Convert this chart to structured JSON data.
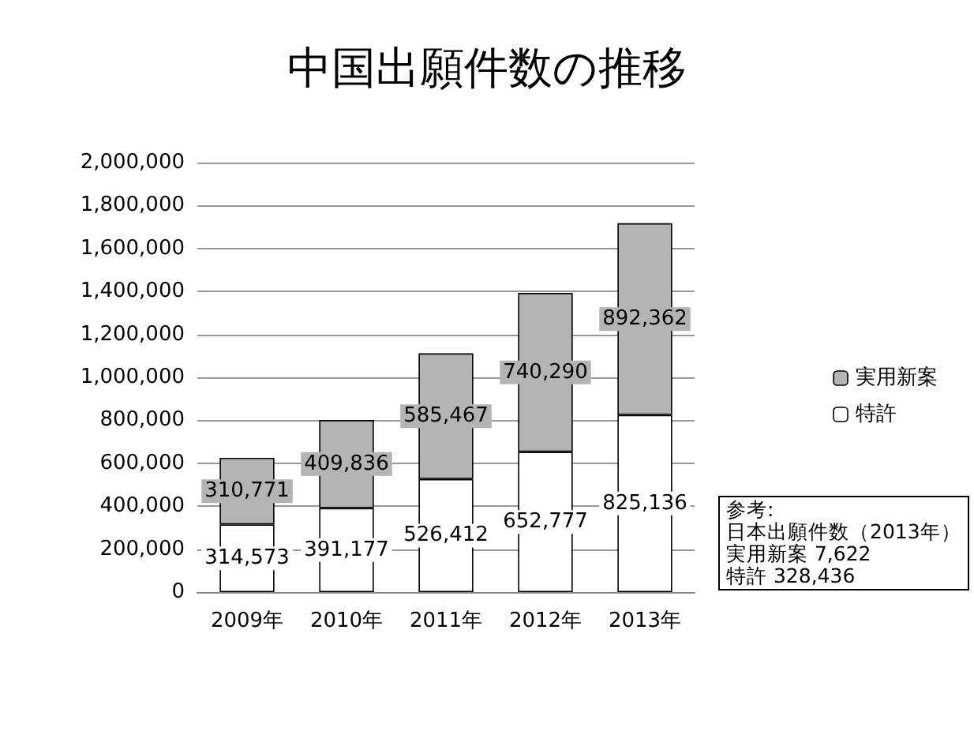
{
  "chart_data": {
    "type": "bar",
    "title": "中国出願件数の推移",
    "categories": [
      "2009年",
      "2010年",
      "2011年",
      "2012年",
      "2013年"
    ],
    "stacked": true,
    "series": [
      {
        "name": "特許",
        "color": "#ffffff",
        "values": [
          314573,
          391177,
          526412,
          652777,
          825136
        ],
        "value_labels": [
          "314,573",
          "391,177",
          "526,412",
          "652,777",
          "825,136"
        ]
      },
      {
        "name": "実用新案",
        "color": "#b4b4b4",
        "values": [
          310771,
          409836,
          585467,
          740290,
          892362
        ],
        "value_labels": [
          "310,771",
          "409,836",
          "585,467",
          "740,290",
          "892,362"
        ]
      }
    ],
    "ylim": [
      0,
      2000000
    ],
    "yticks": [
      0,
      {
        "value": 200000,
        "label": "200,000"
      },
      {
        "value": 400000,
        "label": "400,000"
      },
      {
        "value": 600000,
        "label": "600,000"
      },
      {
        "value": 800000,
        "label": "800,000"
      },
      {
        "value": 1000000,
        "label": "1,000,000"
      },
      {
        "value": 1200000,
        "label": "1,200,000"
      },
      {
        "value": 1400000,
        "label": "1,400,000"
      },
      {
        "value": 1600000,
        "label": "1,600,000"
      },
      {
        "value": 1800000,
        "label": "1,800,000"
      },
      {
        "value": 2000000,
        "label": "2,000,000"
      }
    ],
    "grid": "y",
    "legend": "right",
    "annotations": [
      "参考:",
      "日本出願件数（2013年）",
      "実用新案 7,622",
      "特許  328,436"
    ]
  }
}
